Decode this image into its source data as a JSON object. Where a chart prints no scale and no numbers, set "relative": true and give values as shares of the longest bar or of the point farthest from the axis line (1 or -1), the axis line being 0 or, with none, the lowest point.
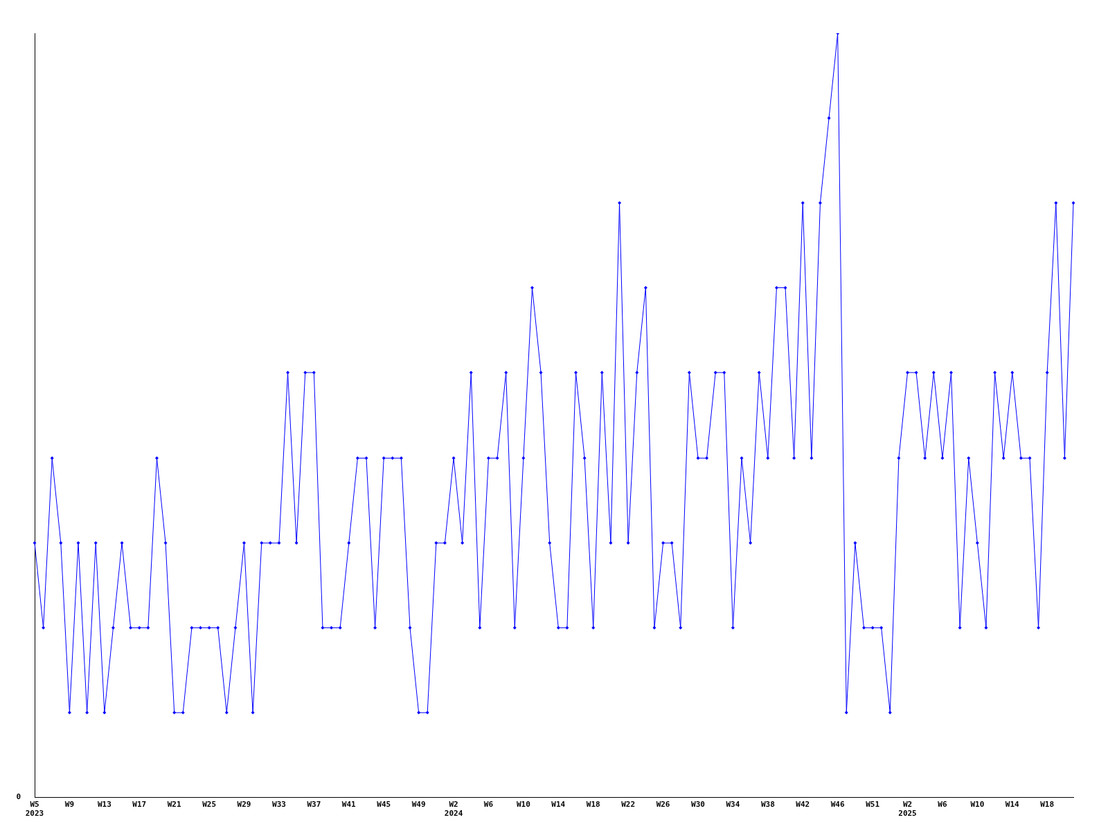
{
  "chart_data": {
    "type": "line",
    "relative": true,
    "marker": "diamond",
    "categories": [
      "W5\n2023",
      null,
      null,
      null,
      "W9",
      null,
      null,
      null,
      "W13",
      null,
      null,
      null,
      "W17",
      null,
      null,
      null,
      "W21",
      null,
      null,
      null,
      "W25",
      null,
      null,
      null,
      "W29",
      null,
      null,
      null,
      "W33",
      null,
      null,
      null,
      "W37",
      null,
      null,
      null,
      "W41",
      null,
      null,
      null,
      "W45",
      null,
      null,
      null,
      "W49",
      null,
      null,
      null,
      "W2\n2024",
      null,
      null,
      null,
      "W6",
      null,
      null,
      null,
      "W10",
      null,
      null,
      null,
      "W14",
      null,
      null,
      null,
      "W18",
      null,
      null,
      null,
      "W22",
      null,
      null,
      null,
      "W26",
      null,
      null,
      null,
      "W30",
      null,
      null,
      null,
      "W34",
      null,
      null,
      null,
      "W38",
      null,
      null,
      null,
      "W42",
      null,
      null,
      null,
      "W46",
      null,
      null,
      null,
      "W51",
      null,
      null,
      null,
      "W2\n2025",
      null,
      null,
      null,
      "W6",
      null,
      null,
      null,
      "W10",
      null,
      null,
      null,
      "W14",
      null,
      null,
      null,
      "W18",
      null,
      null,
      null
    ],
    "series": [
      {
        "color": "#0000ff",
        "values": [
          0.333,
          0.222,
          0.444,
          0.333,
          0.111,
          0.333,
          0.111,
          0.333,
          0.111,
          0.222,
          0.333,
          0.222,
          0.222,
          0.222,
          0.444,
          0.333,
          0.111,
          0.111,
          0.222,
          0.222,
          0.222,
          0.222,
          0.111,
          0.222,
          0.333,
          0.111,
          0.333,
          0.333,
          0.333,
          0.556,
          0.333,
          0.556,
          0.556,
          0.222,
          0.222,
          0.222,
          0.333,
          0.444,
          0.444,
          0.222,
          0.444,
          0.444,
          0.444,
          0.222,
          0.111,
          0.111,
          0.333,
          0.333,
          0.444,
          0.333,
          0.556,
          0.222,
          0.444,
          0.444,
          0.556,
          0.222,
          0.444,
          0.667,
          0.556,
          0.333,
          0.222,
          0.222,
          0.556,
          0.444,
          0.222,
          0.556,
          0.333,
          0.778,
          0.333,
          0.556,
          0.667,
          0.222,
          0.333,
          0.333,
          0.222,
          0.556,
          0.444,
          0.444,
          0.556,
          0.556,
          0.222,
          0.444,
          0.333,
          0.556,
          0.444,
          0.667,
          0.667,
          0.444,
          0.778,
          0.444,
          0.778,
          0.889,
          1,
          0.111,
          0.333,
          0.222,
          0.222,
          0.222,
          0.111,
          0.444,
          0.556,
          0.556,
          0.444,
          0.556,
          0.444,
          0.556,
          0.222,
          0.444,
          0.333,
          0.222,
          0.556,
          0.444,
          0.556,
          0.444,
          0.444,
          0.222,
          0.556,
          0.778,
          0.444,
          0.778
        ]
      }
    ],
    "annotations": [
      "0"
    ]
  }
}
